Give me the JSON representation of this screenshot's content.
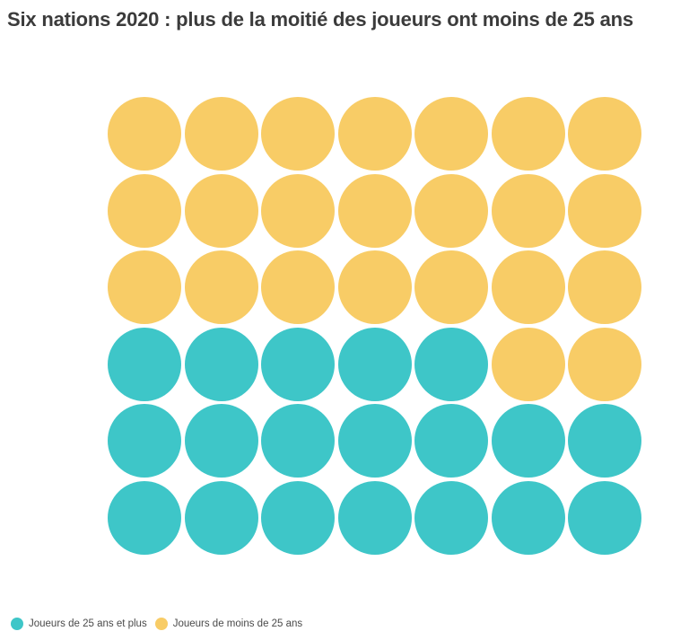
{
  "title": "Six nations 2020 : plus de la moitié des joueurs ont moins de 25 ans",
  "legend": {
    "items": [
      {
        "label": "Joueurs de 25 ans et plus",
        "color": "#3ec6c8"
      },
      {
        "label": "Joueurs de moins de 25 ans",
        "color": "#f8cc66"
      }
    ]
  },
  "chart_data": {
    "type": "waffle",
    "title": "Six nations 2020 : plus de la moitié des joueurs ont moins de 25 ans",
    "grid": {
      "rows": 6,
      "columns": 7,
      "total_dots": 42
    },
    "series": [
      {
        "name": "Joueurs de 25 ans et plus",
        "key": "plus25",
        "value": 19,
        "color": "#3ec6c8"
      },
      {
        "name": "Joueurs de moins de 25 ans",
        "key": "moins25",
        "value": 23,
        "color": "#f8cc66"
      }
    ],
    "colors": {
      "plus25": "#3ec6c8",
      "moins25": "#f8cc66"
    },
    "cells": [
      [
        "moins25",
        "moins25",
        "moins25",
        "moins25",
        "moins25",
        "moins25",
        "moins25"
      ],
      [
        "moins25",
        "moins25",
        "moins25",
        "moins25",
        "moins25",
        "moins25",
        "moins25"
      ],
      [
        "moins25",
        "moins25",
        "moins25",
        "moins25",
        "moins25",
        "moins25",
        "moins25"
      ],
      [
        "plus25",
        "plus25",
        "plus25",
        "plus25",
        "plus25",
        "moins25",
        "moins25"
      ],
      [
        "plus25",
        "plus25",
        "plus25",
        "plus25",
        "plus25",
        "plus25",
        "plus25"
      ],
      [
        "plus25",
        "plus25",
        "plus25",
        "plus25",
        "plus25",
        "plus25",
        "plus25"
      ]
    ],
    "legend_position": "bottom-left"
  }
}
